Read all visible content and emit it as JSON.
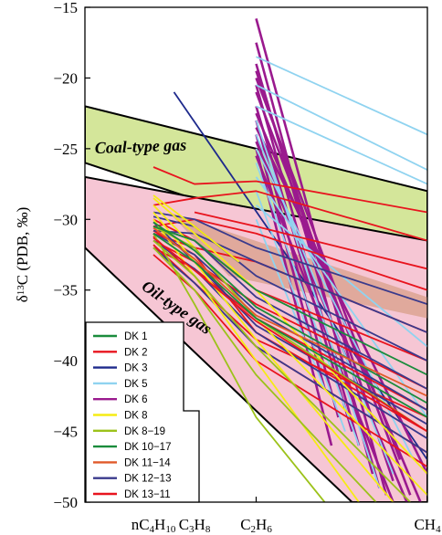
{
  "chart_data": {
    "type": "line",
    "ylabel": "δ¹³C (PDB, ‰)",
    "ylim": [
      -50,
      -15
    ],
    "yticks": [
      "−15",
      "−20",
      "−25",
      "−30",
      "−35",
      "−40",
      "−45",
      "−50"
    ],
    "ytick_values": [
      -15,
      -20,
      -25,
      -30,
      -35,
      -40,
      -45,
      -50
    ],
    "x_categories": [
      "nC4H10",
      "C3H8",
      "C2H6",
      "CH4"
    ],
    "x_category_positions": [
      0.2,
      0.32,
      0.5,
      1.0
    ],
    "zones": [
      {
        "name": "Coal-type gas",
        "label": "Coal-type gas",
        "color": "#d4e69a",
        "polygon": [
          [
            0,
            -22
          ],
          [
            1,
            -28
          ],
          [
            1,
            -34
          ],
          [
            0,
            -26
          ]
        ]
      },
      {
        "name": "Oil-type gas",
        "label": "Oil-type gas",
        "color": "#f6c6d4",
        "polygon": [
          [
            0,
            -27
          ],
          [
            1,
            -31.5
          ],
          [
            1,
            -50
          ],
          [
            0.78,
            -50
          ],
          [
            0,
            -32
          ]
        ]
      },
      {
        "name": "overlap",
        "color": "#e0a99c",
        "polygon": [
          [
            0.245,
            -29.5
          ],
          [
            1,
            -35.5
          ],
          [
            1,
            -37
          ],
          [
            0.42,
            -34
          ]
        ]
      }
    ],
    "legend": [
      {
        "name": "DK 1",
        "color": "#1a8c3c"
      },
      {
        "name": "DK 2",
        "color": "#e8141e"
      },
      {
        "name": "DK 3",
        "color": "#1e2a8c"
      },
      {
        "name": "DK 5",
        "color": "#8fd3f0"
      },
      {
        "name": "DK 6",
        "color": "#9a1a8e"
      },
      {
        "name": "DK 8",
        "color": "#f5ec14"
      },
      {
        "name": "DK 8-19",
        "color": "#9cc21a"
      },
      {
        "name": "DK 10-17",
        "color": "#1a8c3c"
      },
      {
        "name": "DK 11-14",
        "color": "#e05a2a"
      },
      {
        "name": "DK 12-13",
        "color": "#3a3a8c"
      },
      {
        "name": "DK 13-11",
        "color": "#e8141e"
      }
    ],
    "series_lines": [
      {
        "series": "DK 3",
        "x": [
          0.26,
          1.0
        ],
        "y": [
          -21,
          -47
        ]
      },
      {
        "series": "DK 6",
        "x": [
          0.5,
          0.88
        ],
        "y": [
          -15.8,
          -49.5
        ]
      },
      {
        "series": "DK 6",
        "x": [
          0.5,
          0.84
        ],
        "y": [
          -17.5,
          -48
        ]
      },
      {
        "series": "DK 6",
        "x": [
          0.5,
          0.86
        ],
        "y": [
          -19,
          -49
        ]
      },
      {
        "series": "DK 6",
        "x": [
          0.5,
          0.9
        ],
        "y": [
          -19.5,
          -48.5
        ]
      },
      {
        "series": "DK 6",
        "x": [
          0.5,
          0.92
        ],
        "y": [
          -20,
          -47
        ]
      },
      {
        "series": "DK 6",
        "x": [
          0.5,
          0.8
        ],
        "y": [
          -20.5,
          -46
        ]
      },
      {
        "series": "DK 6",
        "x": [
          0.5,
          0.95
        ],
        "y": [
          -21,
          -49.5
        ]
      },
      {
        "series": "DK 6",
        "x": [
          0.5,
          0.78
        ],
        "y": [
          -22,
          -45
        ]
      },
      {
        "series": "DK 6",
        "x": [
          0.5,
          0.98
        ],
        "y": [
          -22.5,
          -50
        ]
      },
      {
        "series": "DK 6",
        "x": [
          0.5,
          0.74
        ],
        "y": [
          -23,
          -44
        ]
      },
      {
        "series": "DK 6",
        "x": [
          0.5,
          1.0
        ],
        "y": [
          -23.5,
          -48
        ]
      },
      {
        "series": "DK 6",
        "x": [
          0.5,
          0.7
        ],
        "y": [
          -24,
          -42
        ]
      },
      {
        "series": "DK 6",
        "x": [
          0.5,
          0.94
        ],
        "y": [
          -24.5,
          -50
        ]
      },
      {
        "series": "DK 6",
        "x": [
          0.5,
          0.72
        ],
        "y": [
          -25,
          -46
        ]
      },
      {
        "series": "DK 6",
        "x": [
          0.5,
          0.9
        ],
        "y": [
          -25.5,
          -50
        ]
      },
      {
        "series": "DK 5",
        "x": [
          0.5,
          1.0
        ],
        "y": [
          -18.5,
          -24
        ]
      },
      {
        "series": "DK 5",
        "x": [
          0.5,
          1.0
        ],
        "y": [
          -20.5,
          -26.5
        ]
      },
      {
        "series": "DK 5",
        "x": [
          0.5,
          1.0
        ],
        "y": [
          -22,
          -27.5
        ]
      },
      {
        "series": "DK 5",
        "x": [
          0.5,
          0.86
        ],
        "y": [
          -23,
          -49
        ]
      },
      {
        "series": "DK 5",
        "x": [
          0.5,
          0.9
        ],
        "y": [
          -24,
          -48
        ]
      },
      {
        "series": "DK 5",
        "x": [
          0.5,
          0.96
        ],
        "y": [
          -25,
          -47
        ]
      },
      {
        "series": "DK 5",
        "x": [
          0.5,
          0.8
        ],
        "y": [
          -26,
          -46
        ]
      },
      {
        "series": "DK 5",
        "x": [
          0.5,
          1.0
        ],
        "y": [
          -27,
          -44
        ]
      },
      {
        "series": "DK 5",
        "x": [
          0.5,
          0.76
        ],
        "y": [
          -28,
          -45
        ]
      },
      {
        "series": "DK 5",
        "x": [
          0.5,
          1.0
        ],
        "y": [
          -29,
          -39
        ]
      },
      {
        "series": "DK 5",
        "x": [
          0.5,
          0.7
        ],
        "y": [
          -30,
          -42
        ]
      },
      {
        "series": "DK 2",
        "x": [
          0.2,
          0.32,
          0.5,
          1.0
        ],
        "y": [
          -26.3,
          -27.5,
          -27.3,
          -29.5
        ]
      },
      {
        "series": "DK 2",
        "x": [
          0.2,
          0.32,
          0.5,
          1.0
        ],
        "y": [
          -29,
          -28.5,
          -28,
          -31.5
        ]
      },
      {
        "series": "DK 2",
        "x": [
          0.2,
          0.32,
          0.5,
          1.0
        ],
        "y": [
          -30.5,
          -30,
          -31,
          -35
        ]
      },
      {
        "series": "DK 2",
        "x": [
          0.2,
          0.32,
          0.5,
          1.0
        ],
        "y": [
          -31,
          -32,
          -33,
          -38
        ]
      },
      {
        "series": "DK 2",
        "x": [
          0.2,
          0.32,
          0.5,
          1.0
        ],
        "y": [
          -30,
          -31.5,
          -35,
          -40
        ]
      },
      {
        "series": "DK 2",
        "x": [
          0.2,
          0.32,
          0.5,
          1.0
        ],
        "y": [
          -31.5,
          -33,
          -36,
          -42
        ]
      },
      {
        "series": "DK 2",
        "x": [
          0.2,
          0.32,
          0.5,
          1.0
        ],
        "y": [
          -32,
          -33.5,
          -37,
          -43.5
        ]
      },
      {
        "series": "DK 2",
        "x": [
          0.2,
          0.32,
          0.5,
          1.0
        ],
        "y": [
          -30.8,
          -32.5,
          -38,
          -45
        ]
      },
      {
        "series": "DK 2",
        "x": [
          0.2,
          0.32,
          0.5,
          1.0
        ],
        "y": [
          -31.2,
          -34,
          -39,
          -46.5
        ]
      },
      {
        "series": "DK 2",
        "x": [
          0.2,
          0.32,
          0.5,
          1.0
        ],
        "y": [
          -32.5,
          -35,
          -40,
          -47.5
        ]
      },
      {
        "series": "DK 2",
        "x": [
          0.2,
          0.32,
          0.5,
          1.0
        ],
        "y": [
          -31.8,
          -34.5,
          -38.5,
          -44
        ]
      },
      {
        "series": "DK 2",
        "x": [
          0.32,
          0.5,
          1.0
        ],
        "y": [
          -29.5,
          -30.5,
          -33.5
        ]
      },
      {
        "series": "DK 12-13",
        "x": [
          0.2,
          0.32,
          0.5,
          1.0
        ],
        "y": [
          -29.8,
          -30.5,
          -34,
          -40
        ]
      },
      {
        "series": "DK 12-13",
        "x": [
          0.2,
          0.32,
          0.5,
          1.0
        ],
        "y": [
          -30.5,
          -31.5,
          -35.5,
          -42
        ]
      },
      {
        "series": "DK 12-13",
        "x": [
          0.2,
          0.32,
          0.5,
          1.0
        ],
        "y": [
          -31,
          -32.5,
          -36.5,
          -43.5
        ]
      },
      {
        "series": "DK 12-13",
        "x": [
          0.2,
          0.32,
          0.5,
          1.0
        ],
        "y": [
          -30.2,
          -33,
          -37.5,
          -44.5
        ]
      },
      {
        "series": "DK 12-13",
        "x": [
          0.2,
          0.32,
          0.5,
          1.0
        ],
        "y": [
          -31.5,
          -33.5,
          -38,
          -45.5
        ]
      },
      {
        "series": "DK 12-13",
        "x": [
          0.2,
          0.32,
          0.5,
          1.0
        ],
        "y": [
          -32,
          -34.5,
          -39,
          -46.5
        ]
      },
      {
        "series": "DK 12-13",
        "x": [
          0.2,
          0.32,
          0.5,
          1.0
        ],
        "y": [
          -30.8,
          -31,
          -33,
          -38
        ]
      },
      {
        "series": "DK 12-13",
        "x": [
          0.2,
          0.32,
          0.5,
          1.0
        ],
        "y": [
          -29.5,
          -30,
          -32,
          -36
        ]
      },
      {
        "series": "DK 8",
        "x": [
          0.2,
          0.32,
          0.5,
          1.0
        ],
        "y": [
          -28.5,
          -31,
          -35,
          -48
        ]
      },
      {
        "series": "DK 8",
        "x": [
          0.2,
          0.32,
          0.5,
          1.0
        ],
        "y": [
          -29,
          -32,
          -37,
          -49.5
        ]
      },
      {
        "series": "DK 8",
        "x": [
          0.2,
          0.32,
          0.5,
          0.9
        ],
        "y": [
          -29.5,
          -33,
          -38.5,
          -50
        ]
      },
      {
        "series": "DK 8",
        "x": [
          0.2,
          0.32,
          0.5,
          0.8
        ],
        "y": [
          -30,
          -34,
          -40,
          -50
        ]
      },
      {
        "series": "DK 8",
        "x": [
          0.2,
          0.32,
          0.45
        ],
        "y": [
          -28.3,
          -30.5,
          -33
        ]
      },
      {
        "series": "DK 8-19",
        "x": [
          0.2,
          0.32,
          0.5,
          1.0
        ],
        "y": [
          -30.5,
          -32,
          -37,
          -45
        ]
      },
      {
        "series": "DK 8-19",
        "x": [
          0.2,
          0.32,
          0.5,
          0.95
        ],
        "y": [
          -31.5,
          -34,
          -39,
          -50
        ]
      },
      {
        "series": "DK 8-19",
        "x": [
          0.2,
          0.32,
          0.5,
          0.85
        ],
        "y": [
          -32,
          -35,
          -41,
          -50
        ]
      },
      {
        "series": "DK 8-19",
        "x": [
          0.2,
          0.32,
          0.5,
          0.7
        ],
        "y": [
          -31,
          -36,
          -44,
          -50
        ]
      },
      {
        "series": "DK 1",
        "x": [
          0.2,
          0.32,
          0.5,
          1.0
        ],
        "y": [
          -30.5,
          -31.5,
          -35,
          -41
        ]
      },
      {
        "series": "DK 1",
        "x": [
          0.2,
          0.32,
          0.5,
          1.0
        ],
        "y": [
          -31,
          -33,
          -37,
          -44
        ]
      },
      {
        "series": "DK 10-17",
        "x": [
          0.2,
          0.32,
          0.5,
          1.0
        ],
        "y": [
          -30.2,
          -32.2,
          -36.2,
          -43
        ]
      },
      {
        "series": "DK 11-14",
        "x": [
          0.2,
          0.32,
          0.5,
          1.0
        ],
        "y": [
          -30.6,
          -32.8,
          -36.8,
          -42.5
        ]
      },
      {
        "series": "DK 13-11",
        "x": [
          0.2,
          0.32,
          0.5,
          1.0
        ],
        "y": [
          -31.3,
          -33.6,
          -37.2,
          -45
        ]
      }
    ]
  }
}
